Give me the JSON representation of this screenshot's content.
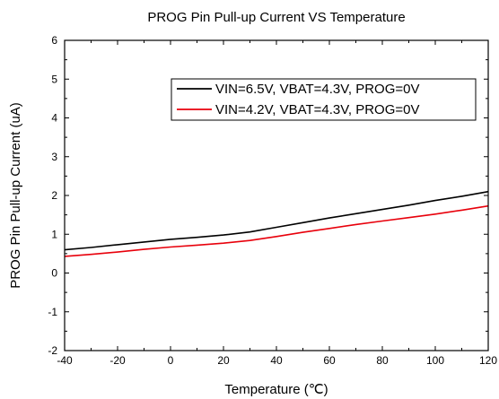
{
  "chart_data": {
    "type": "line",
    "title": "PROG Pin Pull-up Current VS Temperature",
    "xlabel": "Temperature (℃)",
    "ylabel": "PROG Pin Pull-up Current (uA)",
    "xlim": [
      -40,
      120
    ],
    "ylim": [
      -2,
      6
    ],
    "xticks": [
      -40,
      -20,
      0,
      20,
      40,
      60,
      80,
      100,
      120
    ],
    "yticks": [
      -2,
      -1,
      0,
      1,
      2,
      3,
      4,
      5,
      6
    ],
    "grid": false,
    "legend_position": "top-right",
    "series": [
      {
        "name": "VIN=6.5V, VBAT=4.3V, PROG=0V",
        "color": "#000000",
        "x": [
          -40,
          -30,
          -20,
          -10,
          0,
          10,
          20,
          30,
          40,
          50,
          60,
          70,
          80,
          90,
          100,
          110,
          120
        ],
        "y": [
          0.6,
          0.66,
          0.73,
          0.8,
          0.87,
          0.92,
          0.98,
          1.06,
          1.18,
          1.3,
          1.42,
          1.53,
          1.64,
          1.75,
          1.87,
          1.98,
          2.1
        ]
      },
      {
        "name": "VIN=4.2V, VBAT=4.3V, PROG=0V",
        "color": "#e8000b",
        "x": [
          -40,
          -30,
          -20,
          -10,
          0,
          10,
          20,
          30,
          40,
          50,
          60,
          70,
          80,
          90,
          100,
          110,
          120
        ],
        "y": [
          0.43,
          0.48,
          0.54,
          0.61,
          0.67,
          0.72,
          0.77,
          0.84,
          0.94,
          1.05,
          1.15,
          1.25,
          1.34,
          1.43,
          1.52,
          1.62,
          1.73
        ]
      }
    ]
  }
}
